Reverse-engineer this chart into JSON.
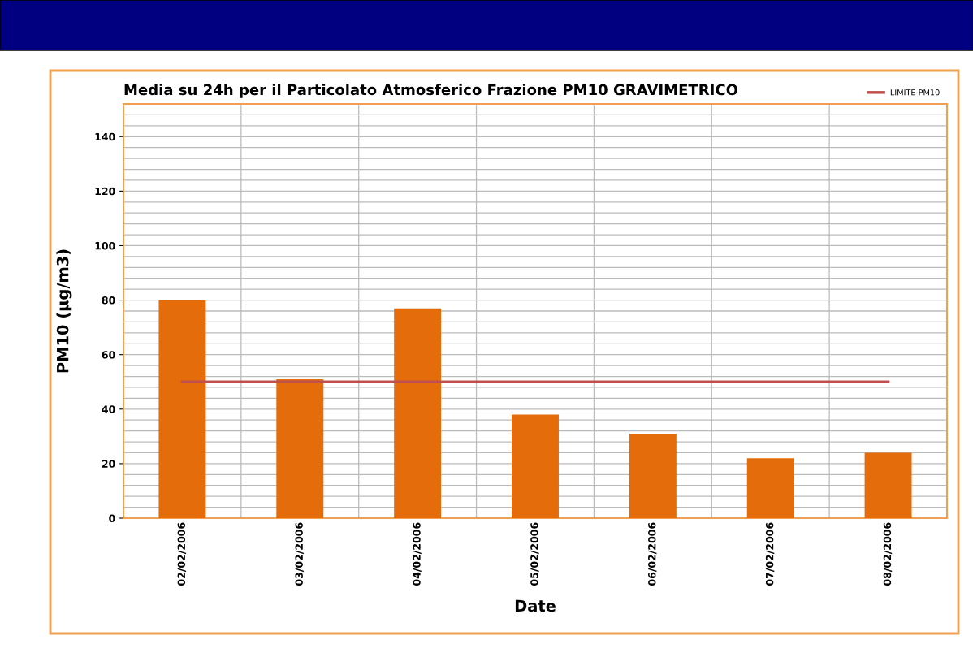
{
  "chart_data": {
    "type": "bar",
    "title": "Media su 24h per il Particolato Atmosferico Frazione PM10 GRAVIMETRICO",
    "xlabel": "Date",
    "ylabel": "PM10 (µg/m3)",
    "categories": [
      "02/02/2006",
      "03/02/2006",
      "04/02/2006",
      "05/02/2006",
      "06/02/2006",
      "07/02/2006",
      "08/02/2006"
    ],
    "series": [
      {
        "color": "#e46c0a",
        "values": [
          80,
          51,
          77,
          38,
          31,
          22,
          24
        ]
      },
      {
        "type": "line",
        "name": "LIMITE PM10",
        "color": "#c0504d",
        "values": [
          50,
          50,
          50,
          50,
          50,
          50,
          50
        ]
      }
    ],
    "ylim": [
      0,
      152
    ],
    "yticks": [
      0,
      20,
      40,
      60,
      80,
      100,
      120,
      140
    ],
    "grid": true,
    "legend": "top right",
    "marker": "none",
    "line_style": "solid"
  }
}
